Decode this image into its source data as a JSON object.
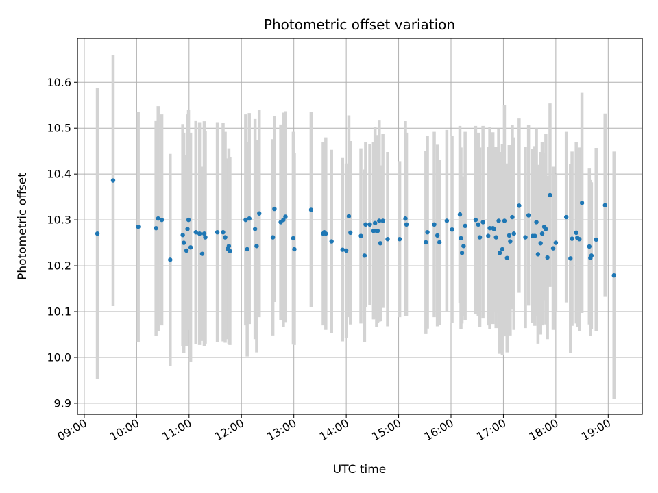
{
  "chart_data": {
    "type": "scatter",
    "title": "Photometric offset variation",
    "xlabel": "UTC time",
    "ylabel": "Photometric offset",
    "grid": true,
    "xlim": [
      8.87,
      19.65
    ],
    "ylim": [
      9.876,
      10.696
    ],
    "x_ticks": [
      9,
      10,
      11,
      12,
      13,
      14,
      15,
      16,
      17,
      18,
      19
    ],
    "x_tick_labels": [
      "09:00",
      "10:00",
      "11:00",
      "12:00",
      "13:00",
      "14:00",
      "15:00",
      "16:00",
      "17:00",
      "18:00",
      "19:00"
    ],
    "y_ticks": [
      9.9,
      10.0,
      10.1,
      10.2,
      10.3,
      10.4,
      10.5,
      10.6
    ],
    "y_tick_labels": [
      "9.9",
      "10.0",
      "10.1",
      "10.2",
      "10.3",
      "10.4",
      "10.5",
      "10.6"
    ],
    "colors": {
      "point": "#1f77b4",
      "errorbar": "#d3d3d3",
      "grid": "#b0b0b0"
    },
    "series": [
      {
        "x": [
          9.25,
          9.55,
          10.03,
          10.37,
          10.41,
          10.48,
          10.64,
          10.88,
          10.9,
          10.95,
          10.97,
          10.99,
          11.03,
          11.13,
          11.2,
          11.25,
          11.29,
          11.31,
          11.54,
          11.65,
          11.69,
          11.74,
          11.76,
          11.78,
          12.08,
          12.11,
          12.15,
          12.26,
          12.29,
          12.34,
          12.6,
          12.63,
          12.75,
          12.8,
          12.84,
          12.99,
          13.01,
          13.33,
          13.56,
          13.58,
          13.61,
          13.72,
          13.93,
          14.0,
          14.05,
          14.08,
          14.28,
          14.35,
          14.37,
          14.45,
          14.52,
          14.55,
          14.58,
          14.6,
          14.63,
          14.65,
          14.7,
          14.79,
          15.02,
          15.13,
          15.15,
          15.52,
          15.55,
          15.68,
          15.74,
          15.78,
          15.92,
          16.02,
          16.17,
          16.19,
          16.21,
          16.24,
          16.27,
          16.47,
          16.52,
          16.55,
          16.61,
          16.71,
          16.74,
          16.8,
          16.82,
          16.86,
          16.91,
          16.93,
          16.98,
          17.02,
          17.07,
          17.11,
          17.13,
          17.17,
          17.2,
          17.3,
          17.42,
          17.48,
          17.56,
          17.6,
          17.63,
          17.66,
          17.71,
          17.74,
          17.78,
          17.81,
          17.84,
          17.89,
          17.95,
          18.0,
          18.2,
          18.28,
          18.31,
          18.39,
          18.41,
          18.45,
          18.5,
          18.64,
          18.66,
          18.68,
          18.77,
          18.94,
          19.11
        ],
        "y": [
          10.27,
          10.386,
          10.285,
          10.282,
          10.303,
          10.3,
          10.213,
          10.267,
          10.25,
          10.233,
          10.28,
          10.3,
          10.24,
          10.273,
          10.27,
          10.226,
          10.27,
          10.262,
          10.273,
          10.273,
          10.262,
          10.237,
          10.243,
          10.232,
          10.3,
          10.236,
          10.303,
          10.28,
          10.243,
          10.314,
          10.262,
          10.324,
          10.295,
          10.3,
          10.307,
          10.26,
          10.236,
          10.322,
          10.27,
          10.273,
          10.27,
          10.253,
          10.235,
          10.233,
          10.308,
          10.272,
          10.265,
          10.222,
          10.29,
          10.29,
          10.276,
          10.293,
          10.276,
          10.276,
          10.298,
          10.249,
          10.298,
          10.258,
          10.258,
          10.303,
          10.29,
          10.251,
          10.273,
          10.29,
          10.266,
          10.251,
          10.298,
          10.279,
          10.312,
          10.26,
          10.228,
          10.243,
          10.287,
          10.3,
          10.29,
          10.262,
          10.295,
          10.265,
          10.282,
          10.282,
          10.28,
          10.262,
          10.298,
          10.228,
          10.236,
          10.298,
          10.217,
          10.266,
          10.253,
          10.306,
          10.27,
          10.331,
          10.262,
          10.31,
          10.265,
          10.265,
          10.295,
          10.225,
          10.249,
          10.27,
          10.285,
          10.28,
          10.218,
          10.354,
          10.238,
          10.25,
          10.306,
          10.216,
          10.259,
          10.272,
          10.261,
          10.258,
          10.337,
          10.242,
          10.217,
          10.222,
          10.257,
          10.332,
          10.179
        ],
        "y_err": [
          0.317,
          0.274,
          0.251,
          0.235,
          0.245,
          0.23,
          0.231,
          0.242,
          0.24,
          0.209,
          0.25,
          0.24,
          0.25,
          0.244,
          0.243,
          0.19,
          0.245,
          0.232,
          0.24,
          0.238,
          0.23,
          0.197,
          0.213,
          0.205,
          0.23,
          0.234,
          0.23,
          0.24,
          0.232,
          0.226,
          0.214,
          0.203,
          0.213,
          0.234,
          0.23,
          0.232,
          0.209,
          0.213,
          0.2,
          0.195,
          0.21,
          0.2,
          0.2,
          0.19,
          0.22,
          0.2,
          0.191,
          0.188,
          0.18,
          0.175,
          0.193,
          0.209,
          0.209,
          0.2,
          0.22,
          0.17,
          0.19,
          0.19,
          0.17,
          0.213,
          0.2,
          0.2,
          0.21,
          0.202,
          0.198,
          0.18,
          0.198,
          0.204,
          0.193,
          0.198,
          0.154,
          0.152,
          0.205,
          0.205,
          0.2,
          0.196,
          0.21,
          0.195,
          0.22,
          0.209,
          0.18,
          0.198,
          0.2,
          0.22,
          0.23,
          0.252,
          0.206,
          0.197,
          0.205,
          0.201,
          0.21,
          0.19,
          0.198,
          0.197,
          0.19,
          0.196,
          0.205,
          0.195,
          0.199,
          0.2,
          0.16,
          0.208,
          0.178,
          0.2,
          0.178,
          0.15,
          0.186,
          0.206,
          0.19,
          0.198,
          0.195,
          0.2,
          0.24,
          0.17,
          0.17,
          0.16,
          0.2,
          0.2,
          0.27
        ]
      }
    ]
  }
}
